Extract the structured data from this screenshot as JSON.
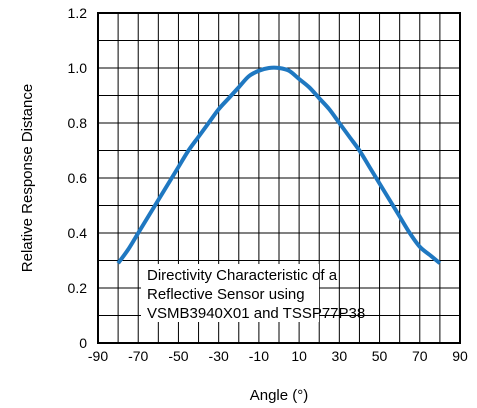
{
  "chart_data": {
    "type": "line",
    "xlabel": "Angle (°)",
    "ylabel": "Relative Response Distance",
    "xlim": [
      -90,
      90
    ],
    "ylim": [
      0,
      1.2
    ],
    "xticks": [
      "-90",
      "-70",
      "-50",
      "-30",
      "-10",
      "10",
      "30",
      "50",
      "70",
      "90"
    ],
    "yticks": [
      "0",
      "0.2",
      "0.4",
      "0.6",
      "0.8",
      "1.0",
      "1.2"
    ],
    "grid": true,
    "annotation": {
      "lines": [
        "Directivity Characteristic of a",
        "Reflective Sensor using",
        "VSMB3940X01 and TSSP77P38"
      ]
    },
    "series": [
      {
        "color": "#1f78c1",
        "x": [
          -80,
          -75,
          -70,
          -65,
          -60,
          -55,
          -50,
          -45,
          -40,
          -35,
          -30,
          -25,
          -20,
          -15,
          -10,
          -5,
          0,
          5,
          10,
          15,
          20,
          25,
          30,
          35,
          40,
          45,
          50,
          55,
          60,
          65,
          70,
          75,
          80
        ],
        "y": [
          0.29,
          0.34,
          0.4,
          0.46,
          0.52,
          0.58,
          0.64,
          0.7,
          0.75,
          0.8,
          0.85,
          0.89,
          0.93,
          0.97,
          0.99,
          1.0,
          1.0,
          0.99,
          0.96,
          0.93,
          0.89,
          0.85,
          0.8,
          0.75,
          0.7,
          0.64,
          0.58,
          0.52,
          0.46,
          0.4,
          0.35,
          0.32,
          0.29
        ]
      }
    ]
  }
}
